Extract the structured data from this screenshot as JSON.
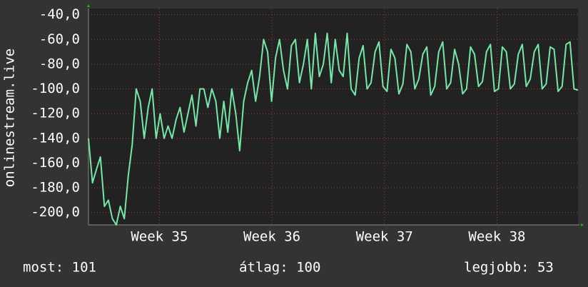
{
  "chart_data": {
    "type": "line",
    "y_label": "onlinestream.live",
    "xlim": [
      34.37,
      38.72
    ],
    "xticks": [
      {
        "value": 35,
        "label": "Week 35"
      },
      {
        "value": 36,
        "label": "Week 36"
      },
      {
        "value": 37,
        "label": "Week 37"
      },
      {
        "value": 38,
        "label": "Week 38"
      }
    ],
    "ylim": [
      -210,
      -35
    ],
    "yticks": [
      {
        "value": -40,
        "label": "-40,0"
      },
      {
        "value": -60,
        "label": "-60,0"
      },
      {
        "value": -80,
        "label": "-80,0"
      },
      {
        "value": -100,
        "label": "-100,0"
      },
      {
        "value": -120,
        "label": "-120,0"
      },
      {
        "value": -140,
        "label": "-140,0"
      },
      {
        "value": -160,
        "label": "-160,0"
      },
      {
        "value": -180,
        "label": "-180,0"
      },
      {
        "value": -200,
        "label": "-200,0"
      }
    ],
    "grid": true,
    "series": [
      {
        "color": "#73e8a8",
        "values": [
          -140,
          -176,
          -165,
          -155,
          -195,
          -190,
          -205,
          -210,
          -195,
          -205,
          -170,
          -145,
          -100,
          -110,
          -140,
          -115,
          -100,
          -140,
          -120,
          -140,
          -130,
          -140,
          -125,
          -115,
          -135,
          -120,
          -105,
          -130,
          -100,
          -100,
          -115,
          -100,
          -110,
          -140,
          -110,
          -135,
          -100,
          -120,
          -150,
          -110,
          -95,
          -85,
          -110,
          -90,
          -60,
          -70,
          -110,
          -75,
          -60,
          -85,
          -100,
          -65,
          -60,
          -95,
          -80,
          -60,
          -100,
          -55,
          -90,
          -80,
          -55,
          -95,
          -60,
          -85,
          -90,
          -55,
          -100,
          -105,
          -75,
          -65,
          -100,
          -95,
          -70,
          -62,
          -98,
          -102,
          -68,
          -75,
          -104,
          -96,
          -64,
          -70,
          -100,
          -92,
          -72,
          -66,
          -105,
          -98,
          -70,
          -62,
          -100,
          -95,
          -68,
          -80,
          -104,
          -100,
          -66,
          -72,
          -98,
          -94,
          -70,
          -64,
          -102,
          -100,
          -66,
          -70,
          -100,
          -96,
          -72,
          -64,
          -98,
          -92,
          -70,
          -64,
          -100,
          -96,
          -66,
          -68,
          -102,
          -98,
          -64,
          -62,
          -100,
          -101
        ]
      }
    ],
    "footer": [
      "most: 101",
      "átlag: 100",
      "legjobb: 53"
    ]
  }
}
